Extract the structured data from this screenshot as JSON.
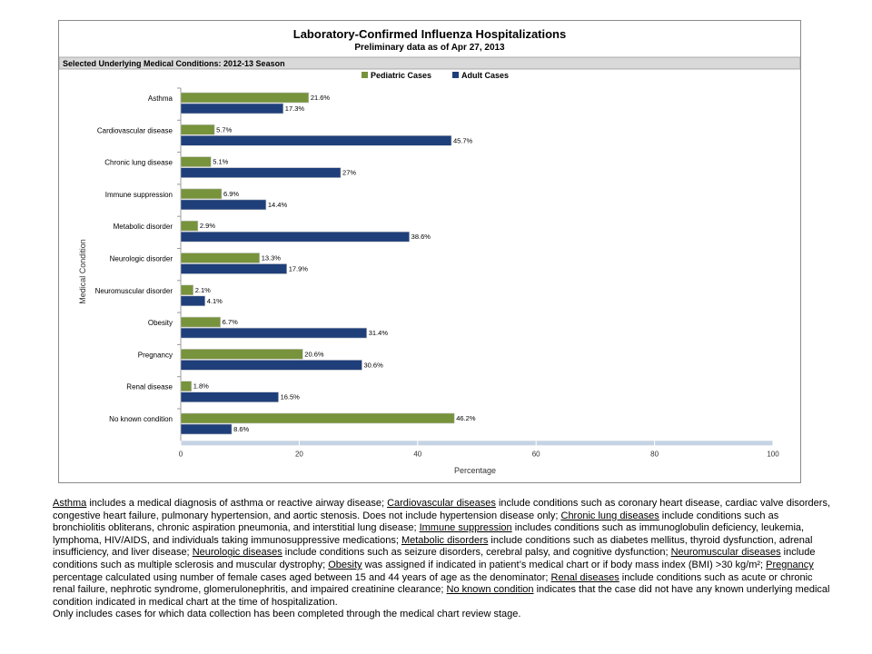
{
  "chart_data": {
    "type": "bar",
    "orientation": "horizontal",
    "title": "Laboratory-Confirmed Influenza Hospitalizations",
    "subtitle": "Preliminary data as of Apr 27, 2013",
    "panel_title": "Selected Underlying Medical Conditions: 2012-13 Season",
    "xlabel": "Percentage",
    "ylabel": "Medical Condition",
    "xlim": [
      0,
      100
    ],
    "xticks": [
      0,
      20,
      40,
      60,
      80,
      100
    ],
    "legend_position": "top-right",
    "grid": false,
    "categories": [
      "Asthma",
      "Cardiovascular disease",
      "Chronic lung disease",
      "Immune suppression",
      "Metabolic disorder",
      "Neurologic disorder",
      "Neuromuscular disorder",
      "Obesity",
      "Pregnancy",
      "Renal disease",
      "No known condition"
    ],
    "series": [
      {
        "name": "Pediatric Cases",
        "color": "#77933c",
        "values": [
          21.6,
          5.7,
          5.1,
          6.9,
          2.9,
          13.3,
          2.1,
          6.7,
          20.6,
          1.8,
          46.2
        ],
        "labels": [
          "21.6%",
          "5.7%",
          "5.1%",
          "6.9%",
          "2.9%",
          "13.3%",
          "2.1%",
          "6.7%",
          "20.6%",
          "1.8%",
          "46.2%"
        ]
      },
      {
        "name": "Adult Cases",
        "color": "#1f3f7a",
        "values": [
          17.3,
          45.7,
          27,
          14.4,
          38.6,
          17.9,
          4.1,
          31.4,
          30.6,
          16.5,
          8.6
        ],
        "labels": [
          "17.3%",
          "45.7%",
          "27%",
          "14.4%",
          "38.6%",
          "17.9%",
          "4.1%",
          "31.4%",
          "30.6%",
          "16.5%",
          "8.6%"
        ]
      }
    ]
  },
  "footnote": {
    "definitions": [
      {
        "term": "Asthma",
        "text": " includes a medical diagnosis of asthma or reactive airway disease; "
      },
      {
        "term": "Cardiovascular diseases",
        "text": " include conditions such as coronary heart disease, cardiac valve disorders, congestive heart failure, pulmonary hypertension, and aortic stenosis.  Does not include hypertension disease only; "
      },
      {
        "term": "Chronic lung diseases",
        "text": " include conditions such as bronchiolitis obliterans, chronic aspiration pneumonia, and interstitial lung disease; "
      },
      {
        "term": "Immune suppression",
        "text": " includes conditions such as immunoglobulin deficiency, leukemia, lymphoma, HIV/AIDS, and individuals taking immunosuppressive medications; "
      },
      {
        "term": "Metabolic disorders",
        "text": " include conditions such as diabetes mellitus, thyroid dysfunction, adrenal insufficiency, and liver disease; "
      },
      {
        "term": "Neurologic diseases",
        "text": " include conditions such as seizure disorders, cerebral palsy, and cognitive dysfunction; "
      },
      {
        "term": "Neuromuscular diseases",
        "text": " include conditions such as multiple sclerosis and muscular dystrophy; "
      },
      {
        "term": "Obesity",
        "text": " was assigned if indicated in patient’s medical chart or if body mass index (BMI) >30 kg/m²;  "
      },
      {
        "term": "Pregnancy",
        "text": " percentage calculated using number of female cases aged between 15 and 44 years of age as the denominator; "
      },
      {
        "term": "Renal diseases",
        "text": " include conditions such as acute or chronic renal failure, nephrotic syndrome, glomerulonephritis, and impaired creatinine clearance; "
      },
      {
        "term": "No known condition",
        "text": " indicates that the case did not have any known underlying medical condition indicated in medical chart at the time of hospitalization."
      }
    ],
    "note": "Only includes cases for which data collection has been completed through the medical chart review stage."
  }
}
